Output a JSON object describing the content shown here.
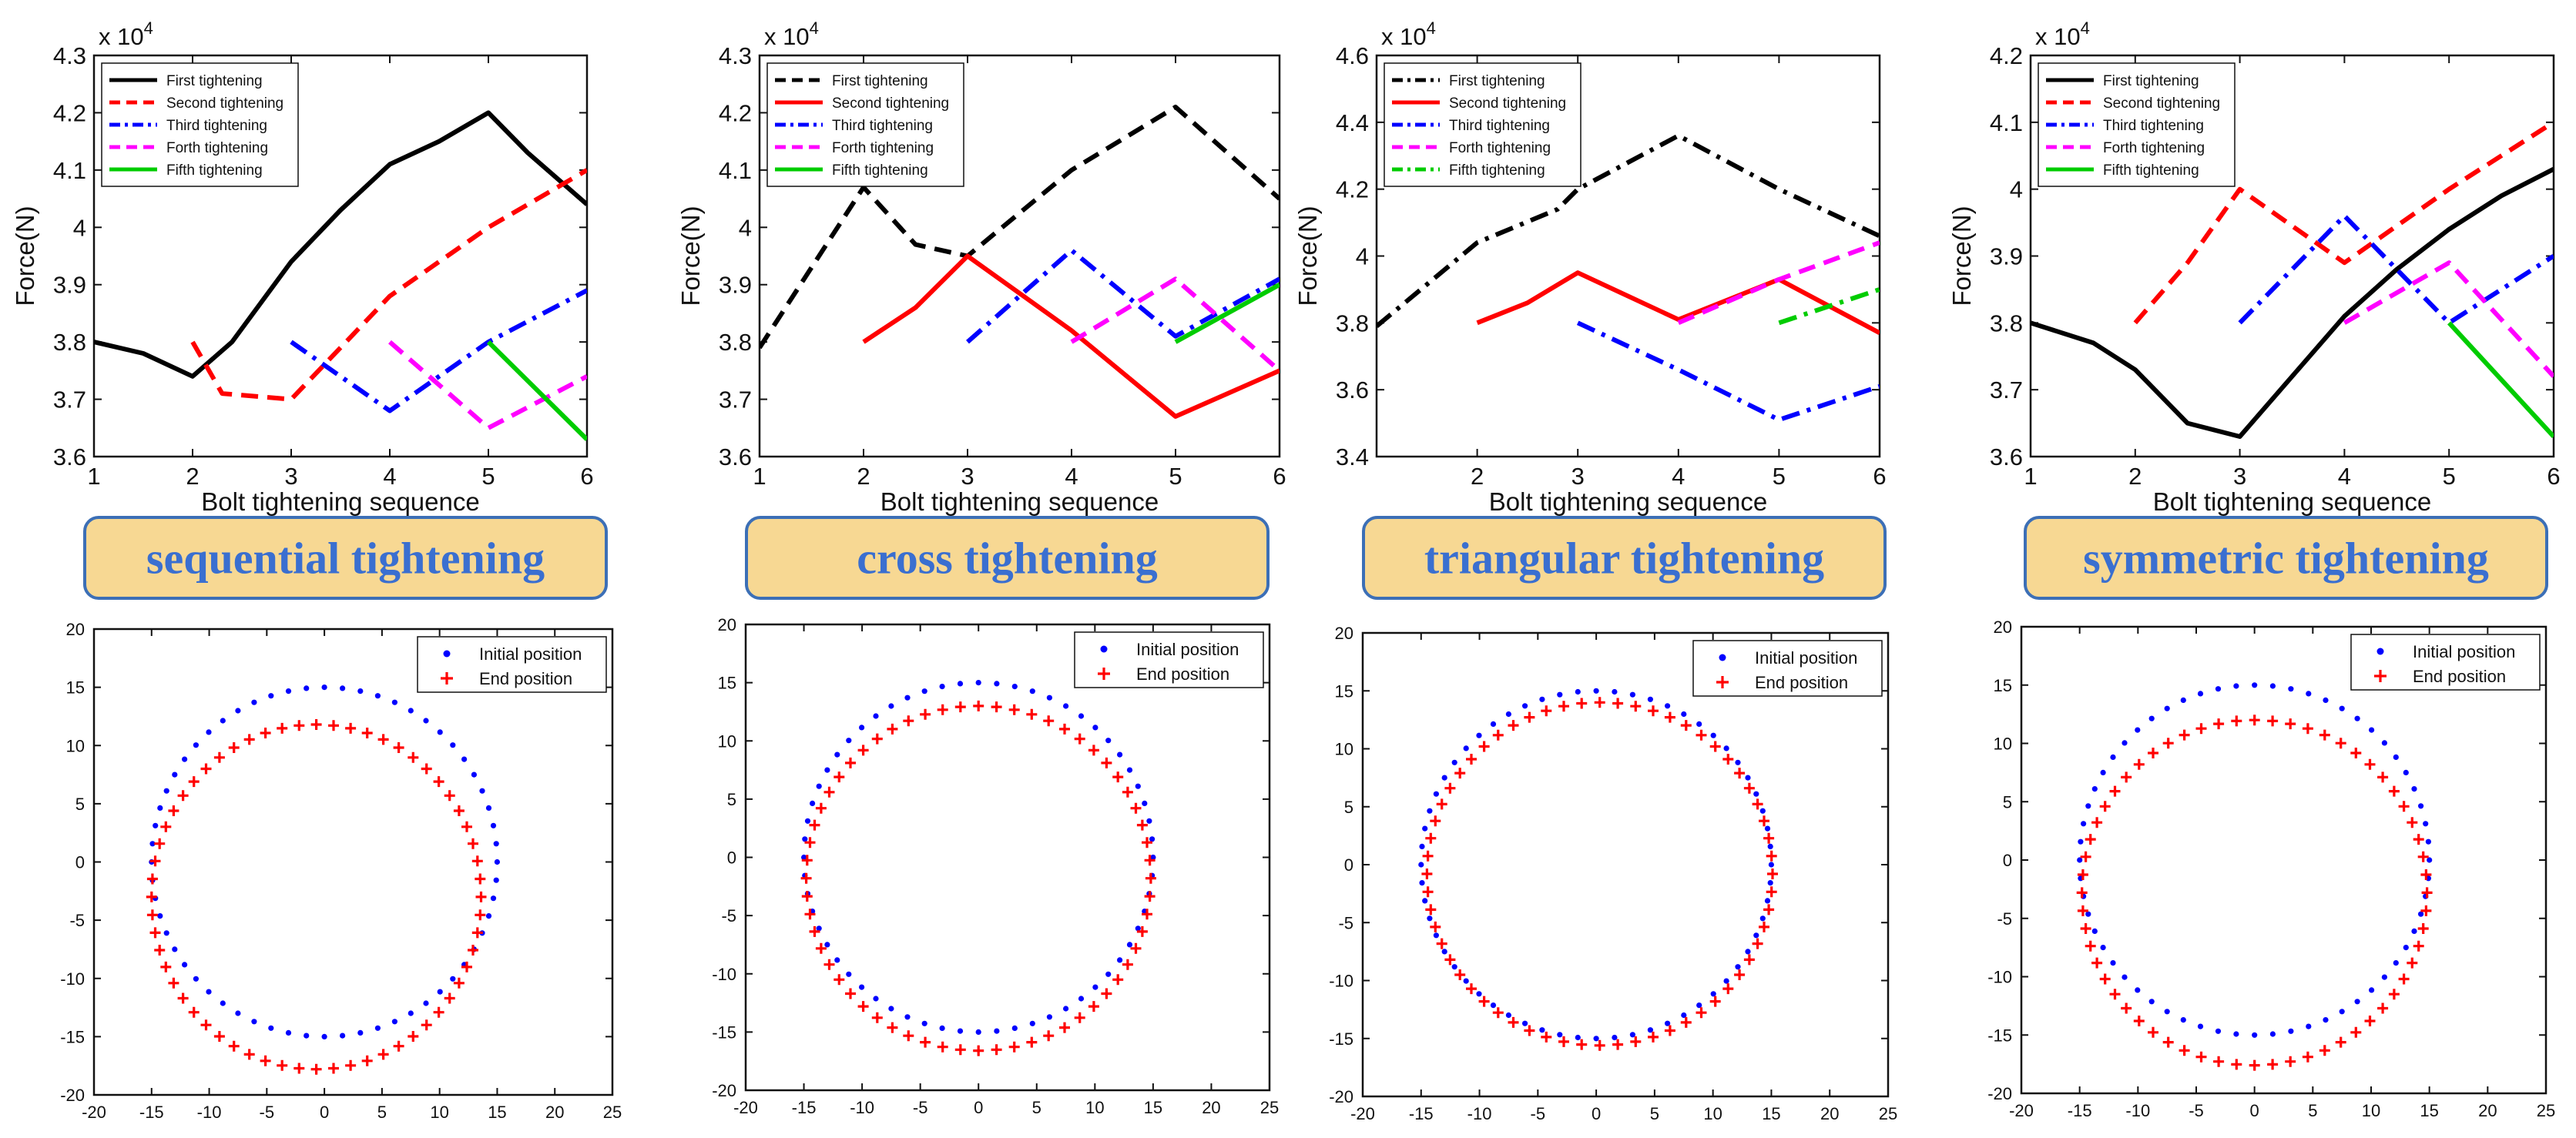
{
  "chart_data": [
    {
      "type": "line",
      "panel": "force",
      "banner": "sequential tightening",
      "xlabel": "Bolt tightening sequence",
      "ylabel": "Force(N)",
      "multiplier": "x 10",
      "multiplier_exp": "4",
      "xlim": [
        1,
        6
      ],
      "ylim": [
        3.6,
        4.3
      ],
      "yticks": [
        "3.6",
        "3.7",
        "3.8",
        "3.9",
        "4",
        "4.1",
        "4.2",
        "4.3"
      ],
      "xticks": [
        "1",
        "2",
        "3",
        "4",
        "5",
        "6"
      ],
      "legend_position": "top-left",
      "series": [
        {
          "name": "First tightening",
          "color": "#000000",
          "dash": "solid",
          "points": [
            [
              1,
              3.8
            ],
            [
              1.5,
              3.78
            ],
            [
              2,
              3.74
            ],
            [
              2.4,
              3.8
            ],
            [
              3,
              3.94
            ],
            [
              3.5,
              4.03
            ],
            [
              4,
              4.11
            ],
            [
              4.5,
              4.15
            ],
            [
              5,
              4.2
            ],
            [
              5.4,
              4.13
            ],
            [
              6,
              4.04
            ]
          ]
        },
        {
          "name": "Second tightening",
          "color": "#ff0000",
          "dash": "dash",
          "points": [
            [
              2,
              3.8
            ],
            [
              2.3,
              3.71
            ],
            [
              3,
              3.7
            ],
            [
              4,
              3.88
            ],
            [
              5,
              4.0
            ],
            [
              6,
              4.1
            ]
          ]
        },
        {
          "name": "Third tightening",
          "color": "#0000ff",
          "dash": "dashdot",
          "points": [
            [
              3,
              3.8
            ],
            [
              4,
              3.68
            ],
            [
              5,
              3.8
            ],
            [
              6,
              3.89
            ]
          ]
        },
        {
          "name": "Forth tightening",
          "color": "#ff00ff",
          "dash": "dash",
          "points": [
            [
              4,
              3.8
            ],
            [
              5,
              3.65
            ],
            [
              6,
              3.74
            ]
          ]
        },
        {
          "name": "Fifth tightening",
          "color": "#00cc00",
          "dash": "solid",
          "points": [
            [
              5,
              3.8
            ],
            [
              6,
              3.63
            ]
          ]
        }
      ]
    },
    {
      "type": "line",
      "panel": "force",
      "banner": "cross tightening",
      "xlabel": "Bolt tightening sequence",
      "ylabel": "Force(N)",
      "multiplier": "x 10",
      "multiplier_exp": "4",
      "xlim": [
        1,
        6
      ],
      "ylim": [
        3.6,
        4.3
      ],
      "yticks": [
        "3.6",
        "3.7",
        "3.8",
        "3.9",
        "4",
        "4.1",
        "4.2",
        "4.3"
      ],
      "xticks": [
        "1",
        "2",
        "3",
        "4",
        "5",
        "6"
      ],
      "legend_position": "top-left",
      "series": [
        {
          "name": "First tightening",
          "color": "#000000",
          "dash": "dash",
          "points": [
            [
              1,
              3.79
            ],
            [
              2,
              4.07
            ],
            [
              2.5,
              3.97
            ],
            [
              3,
              3.95
            ],
            [
              4,
              4.1
            ],
            [
              5,
              4.21
            ],
            [
              6,
              4.05
            ]
          ]
        },
        {
          "name": "Second tightening",
          "color": "#ff0000",
          "dash": "solid",
          "points": [
            [
              2,
              3.8
            ],
            [
              2.5,
              3.86
            ],
            [
              3,
              3.95
            ],
            [
              4,
              3.82
            ],
            [
              5,
              3.67
            ],
            [
              6,
              3.75
            ]
          ]
        },
        {
          "name": "Third tightening",
          "color": "#0000ff",
          "dash": "dashdot",
          "points": [
            [
              3,
              3.8
            ],
            [
              4,
              3.96
            ],
            [
              5,
              3.81
            ],
            [
              6,
              3.91
            ]
          ]
        },
        {
          "name": "Forth tightening",
          "color": "#ff00ff",
          "dash": "dash",
          "points": [
            [
              4,
              3.8
            ],
            [
              5,
              3.91
            ],
            [
              6,
              3.75
            ]
          ]
        },
        {
          "name": "Fifth tightening",
          "color": "#00cc00",
          "dash": "solid",
          "points": [
            [
              5,
              3.8
            ],
            [
              6,
              3.9
            ]
          ]
        }
      ]
    },
    {
      "type": "line",
      "panel": "force",
      "banner": "triangular tightening",
      "xlabel": "Bolt tightening sequence",
      "ylabel": "Force(N)",
      "multiplier": "x 10",
      "multiplier_exp": "4",
      "xlim": [
        1,
        6
      ],
      "ylim": [
        3.4,
        4.6
      ],
      "yticks": [
        "3.4",
        "3.6",
        "3.8",
        "4",
        "4.2",
        "4.4",
        "4.6"
      ],
      "xticks": [
        "2",
        "3",
        "4",
        "5",
        "6"
      ],
      "legend_position": "top-left",
      "series": [
        {
          "name": "First tightening",
          "color": "#000000",
          "dash": "dashdot",
          "points": [
            [
              1,
              3.79
            ],
            [
              2,
              4.04
            ],
            [
              2.8,
              4.14
            ],
            [
              3,
              4.2
            ],
            [
              4,
              4.36
            ],
            [
              5,
              4.2
            ],
            [
              6,
              4.06
            ]
          ]
        },
        {
          "name": "Second tightening",
          "color": "#ff0000",
          "dash": "solid",
          "points": [
            [
              2,
              3.8
            ],
            [
              2.5,
              3.86
            ],
            [
              3,
              3.95
            ],
            [
              4,
              3.81
            ],
            [
              5,
              3.93
            ],
            [
              6,
              3.77
            ]
          ]
        },
        {
          "name": "Third tightening",
          "color": "#0000ff",
          "dash": "dashdot",
          "points": [
            [
              3,
              3.8
            ],
            [
              4,
              3.66
            ],
            [
              5,
              3.51
            ],
            [
              6,
              3.61
            ]
          ]
        },
        {
          "name": "Forth tightening",
          "color": "#ff00ff",
          "dash": "dash",
          "points": [
            [
              4,
              3.8
            ],
            [
              5,
              3.93
            ],
            [
              6,
              4.04
            ]
          ]
        },
        {
          "name": "Fifth tightening",
          "color": "#00cc00",
          "dash": "dashdot",
          "points": [
            [
              5,
              3.8
            ],
            [
              6,
              3.9
            ]
          ]
        }
      ]
    },
    {
      "type": "line",
      "panel": "force",
      "banner": "symmetric tightening",
      "xlabel": "Bolt tightening sequence",
      "ylabel": "Force(N)",
      "multiplier": "x 10",
      "multiplier_exp": "4",
      "xlim": [
        1,
        6
      ],
      "ylim": [
        3.6,
        4.2
      ],
      "yticks": [
        "3.6",
        "3.7",
        "3.8",
        "3.9",
        "4",
        "4.1",
        "4.2"
      ],
      "xticks": [
        "1",
        "2",
        "3",
        "4",
        "5",
        "6"
      ],
      "legend_position": "top-left",
      "series": [
        {
          "name": "First tightening",
          "color": "#000000",
          "dash": "solid",
          "points": [
            [
              1,
              3.8
            ],
            [
              1.6,
              3.77
            ],
            [
              2,
              3.73
            ],
            [
              2.5,
              3.65
            ],
            [
              3,
              3.63
            ],
            [
              3.5,
              3.72
            ],
            [
              4,
              3.81
            ],
            [
              4.5,
              3.88
            ],
            [
              5,
              3.94
            ],
            [
              5.5,
              3.99
            ],
            [
              6,
              4.03
            ]
          ]
        },
        {
          "name": "Second tightening",
          "color": "#ff0000",
          "dash": "dash",
          "points": [
            [
              2,
              3.8
            ],
            [
              2.5,
              3.89
            ],
            [
              3,
              4.0
            ],
            [
              4,
              3.89
            ],
            [
              5,
              4.0
            ],
            [
              6,
              4.1
            ]
          ]
        },
        {
          "name": "Third tightening",
          "color": "#0000ff",
          "dash": "dashdot",
          "points": [
            [
              3,
              3.8
            ],
            [
              4,
              3.96
            ],
            [
              5,
              3.8
            ],
            [
              6,
              3.9
            ]
          ]
        },
        {
          "name": "Forth tightening",
          "color": "#ff00ff",
          "dash": "dash",
          "points": [
            [
              4,
              3.8
            ],
            [
              5,
              3.89
            ],
            [
              6,
              3.72
            ]
          ]
        },
        {
          "name": "Fifth tightening",
          "color": "#00cc00",
          "dash": "solid",
          "points": [
            [
              5,
              3.8
            ],
            [
              6,
              3.63
            ]
          ]
        }
      ]
    },
    {
      "type": "scatter",
      "panel": "circle",
      "xlim": [
        -20,
        25
      ],
      "ylim": [
        -20,
        20
      ],
      "xticks": [
        "-20",
        "-15",
        "-10",
        "-5",
        "0",
        "5",
        "10",
        "15",
        "20",
        "25"
      ],
      "yticks": [
        "-20",
        "-15",
        "-10",
        "-5",
        "0",
        "5",
        "10",
        "15",
        "20"
      ],
      "legend_position": "top-right",
      "series": [
        {
          "name": "Initial position",
          "marker": "dot",
          "color": "#0000ff",
          "cx": 0,
          "cy": 0,
          "rx": 15,
          "ry": 15,
          "count": 60
        },
        {
          "name": "End position",
          "marker": "plus",
          "color": "#ff0000",
          "cx": -0.7,
          "cy": -3,
          "rx": 14.3,
          "ry": 14.8,
          "count": 60
        }
      ]
    },
    {
      "type": "scatter",
      "panel": "circle",
      "xlim": [
        -20,
        25
      ],
      "ylim": [
        -20,
        20
      ],
      "xticks": [
        "-20",
        "-15",
        "-10",
        "-5",
        "0",
        "5",
        "10",
        "15",
        "20",
        "25"
      ],
      "yticks": [
        "-20",
        "-15",
        "-10",
        "-5",
        "0",
        "5",
        "10",
        "15",
        "20"
      ],
      "legend_position": "top-right",
      "series": [
        {
          "name": "Initial position",
          "marker": "dot",
          "color": "#0000ff",
          "cx": 0,
          "cy": 0,
          "rx": 15,
          "ry": 15,
          "count": 60
        },
        {
          "name": "End position",
          "marker": "plus",
          "color": "#ff0000",
          "cx": 0,
          "cy": -1.8,
          "rx": 14.8,
          "ry": 14.8,
          "count": 60
        }
      ]
    },
    {
      "type": "scatter",
      "panel": "circle",
      "xlim": [
        -20,
        25
      ],
      "ylim": [
        -20,
        20
      ],
      "xticks": [
        "-20",
        "-15",
        "-10",
        "-5",
        "0",
        "5",
        "10",
        "15",
        "20",
        "25"
      ],
      "yticks": [
        "-20",
        "-15",
        "-10",
        "-5",
        "0",
        "5",
        "10",
        "15",
        "20"
      ],
      "legend_position": "top-right",
      "series": [
        {
          "name": "Initial position",
          "marker": "dot",
          "color": "#0000ff",
          "cx": 0,
          "cy": 0,
          "rx": 15,
          "ry": 15,
          "count": 60
        },
        {
          "name": "End position",
          "marker": "plus",
          "color": "#ff0000",
          "cx": 0.3,
          "cy": -0.8,
          "rx": 14.8,
          "ry": 14.8,
          "count": 60
        }
      ]
    },
    {
      "type": "scatter",
      "panel": "circle",
      "xlim": [
        -20,
        25
      ],
      "ylim": [
        -20,
        20
      ],
      "xticks": [
        "-20",
        "-15",
        "-10",
        "-5",
        "0",
        "5",
        "10",
        "15",
        "20",
        "25"
      ],
      "yticks": [
        "-20",
        "-15",
        "-10",
        "-5",
        "0",
        "5",
        "10",
        "15",
        "20"
      ],
      "legend_position": "top-right",
      "series": [
        {
          "name": "Initial position",
          "marker": "dot",
          "color": "#0000ff",
          "cx": 0,
          "cy": 0,
          "rx": 15,
          "ry": 15,
          "count": 60
        },
        {
          "name": "End position",
          "marker": "plus",
          "color": "#ff0000",
          "cx": 0,
          "cy": -2.8,
          "rx": 14.8,
          "ry": 14.8,
          "count": 60
        }
      ]
    }
  ]
}
